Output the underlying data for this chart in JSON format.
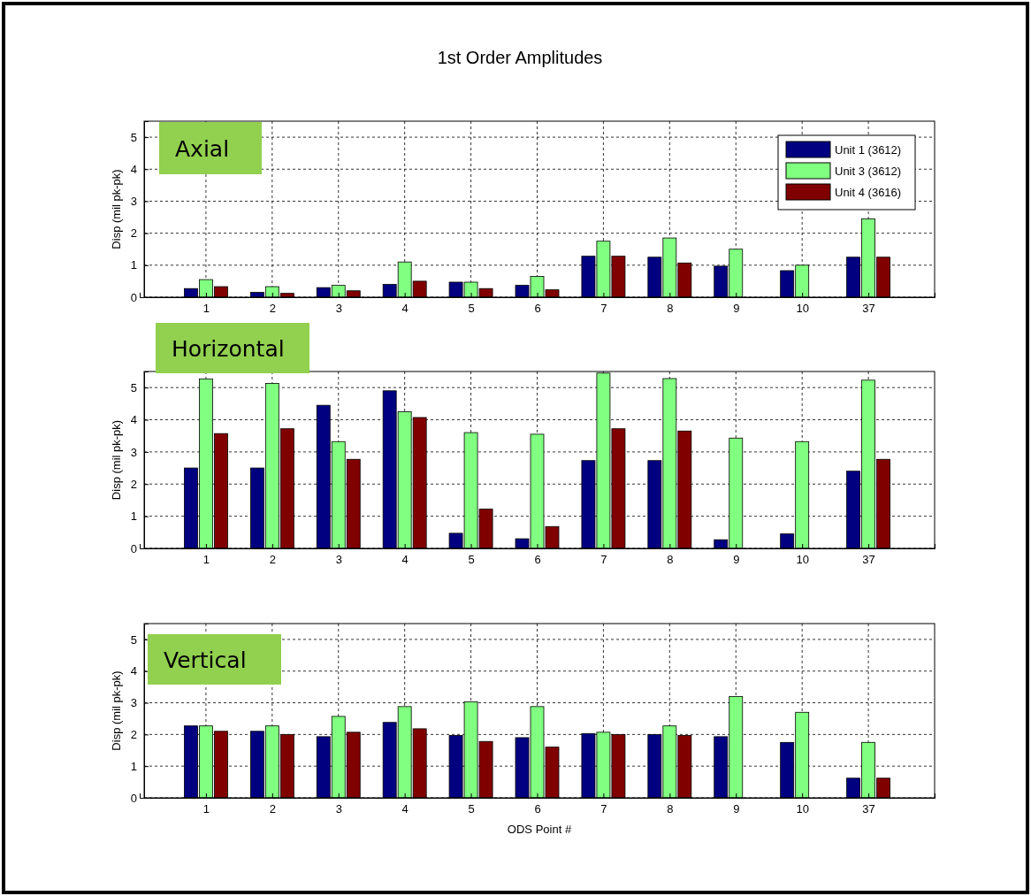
{
  "chart_data": [
    {
      "type": "bar",
      "title": "1st Order Amplitudes",
      "ylabel": "Disp (mil pk-pk)",
      "annotations": [
        "Axial"
      ],
      "categories": [
        "1",
        "2",
        "3",
        "4",
        "5",
        "6",
        "7",
        "8",
        "9",
        "10",
        "37"
      ],
      "ylim": [
        0,
        5.5
      ],
      "yticks": [
        0,
        1,
        2,
        3,
        4,
        5
      ],
      "grid": true,
      "legend": "top right",
      "series": [
        {
          "name": "Unit 1 (3612)",
          "color": "#000080",
          "values": [
            0.27,
            0.15,
            0.3,
            0.4,
            0.47,
            0.37,
            1.28,
            1.25,
            0.97,
            0.83,
            1.25
          ]
        },
        {
          "name": "Unit 3 (3612)",
          "color": "#80ff80",
          "values": [
            0.55,
            0.33,
            0.37,
            1.1,
            0.47,
            0.65,
            1.75,
            1.85,
            1.5,
            1.0,
            2.45
          ]
        },
        {
          "name": "Unit 4 (3616)",
          "color": "#800000",
          "values": [
            0.33,
            0.12,
            0.2,
            0.5,
            0.27,
            0.23,
            1.28,
            1.07,
            null,
            null,
            1.25
          ]
        }
      ]
    },
    {
      "type": "bar",
      "ylabel": "Disp (mil pk-pk)",
      "annotations": [
        "Horizontal"
      ],
      "categories": [
        "1",
        "2",
        "3",
        "4",
        "5",
        "6",
        "7",
        "8",
        "9",
        "10",
        "37"
      ],
      "ylim": [
        0,
        5.5
      ],
      "yticks": [
        0,
        1,
        2,
        3,
        4,
        5
      ],
      "grid": true,
      "series": [
        {
          "color": "#000080",
          "values": [
            2.5,
            2.5,
            4.45,
            4.9,
            0.47,
            0.3,
            2.73,
            2.73,
            0.27,
            0.45,
            2.4
          ]
        },
        {
          "color": "#80ff80",
          "values": [
            5.27,
            5.13,
            3.32,
            4.25,
            3.6,
            3.55,
            5.45,
            5.28,
            3.43,
            3.32,
            5.23
          ]
        },
        {
          "color": "#800000",
          "values": [
            3.57,
            3.72,
            2.77,
            4.07,
            1.22,
            0.68,
            3.72,
            3.65,
            null,
            null,
            2.77
          ]
        }
      ]
    },
    {
      "type": "bar",
      "ylabel": "Disp (mil pk-pk)",
      "xlabel": "ODS Point #",
      "annotations": [
        "Vertical"
      ],
      "categories": [
        "1",
        "2",
        "3",
        "4",
        "5",
        "6",
        "7",
        "8",
        "9",
        "10",
        "37"
      ],
      "ylim": [
        0,
        5.5
      ],
      "yticks": [
        0,
        1,
        2,
        3,
        4,
        5
      ],
      "grid": true,
      "series": [
        {
          "color": "#000080",
          "values": [
            2.27,
            2.1,
            1.93,
            2.38,
            1.97,
            1.9,
            2.03,
            2.0,
            1.93,
            1.75,
            0.62
          ]
        },
        {
          "color": "#80ff80",
          "values": [
            2.27,
            2.27,
            2.57,
            2.88,
            3.03,
            2.88,
            2.07,
            2.27,
            3.2,
            2.7,
            1.75
          ]
        },
        {
          "color": "#800000",
          "values": [
            2.1,
            2.0,
            2.07,
            2.18,
            1.78,
            1.6,
            2.0,
            1.97,
            null,
            null,
            0.62
          ]
        }
      ]
    }
  ]
}
